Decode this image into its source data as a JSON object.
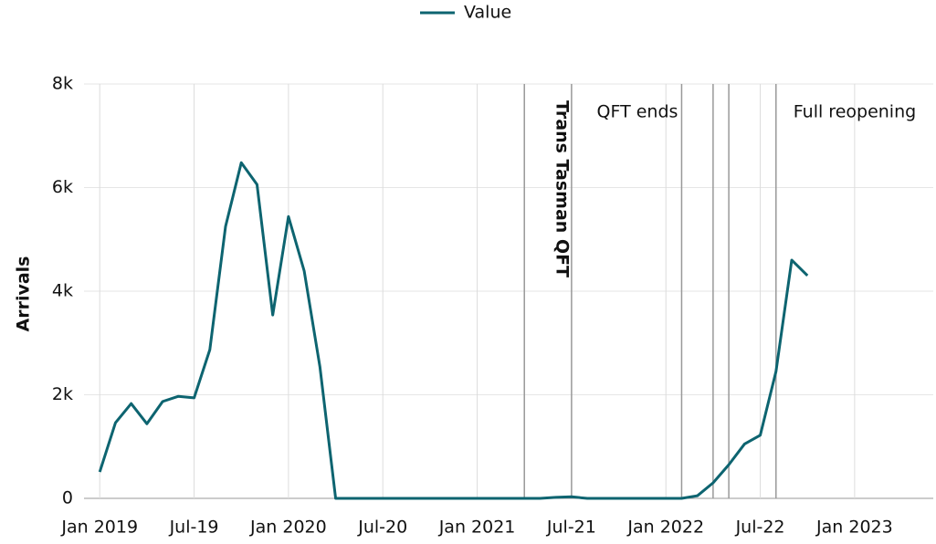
{
  "chart_data": {
    "type": "line",
    "y_label": "Arrivals",
    "x": [
      "2019-01",
      "2019-02",
      "2019-03",
      "2019-04",
      "2019-05",
      "2019-06",
      "2019-07",
      "2019-08",
      "2019-09",
      "2019-10",
      "2019-11",
      "2019-12",
      "2020-01",
      "2020-02",
      "2020-03",
      "2020-04",
      "2020-05",
      "2020-06",
      "2020-07",
      "2020-08",
      "2020-09",
      "2020-10",
      "2020-11",
      "2020-12",
      "2021-01",
      "2021-02",
      "2021-03",
      "2021-04",
      "2021-05",
      "2021-06",
      "2021-07",
      "2021-08",
      "2021-09",
      "2021-10",
      "2021-11",
      "2021-12",
      "2022-01",
      "2022-02",
      "2022-03",
      "2022-04",
      "2022-05",
      "2022-06",
      "2022-07",
      "2022-08",
      "2022-09",
      "2022-10"
    ],
    "series": [
      {
        "name": "Value",
        "color": "#0d6470",
        "values": [
          510,
          1460,
          1830,
          1440,
          1870,
          1970,
          1940,
          2870,
          5250,
          6480,
          6060,
          3540,
          5440,
          4390,
          2540,
          0,
          0,
          0,
          0,
          0,
          0,
          0,
          0,
          0,
          0,
          0,
          0,
          0,
          0,
          20,
          30,
          0,
          0,
          0,
          0,
          0,
          0,
          0,
          50,
          300,
          650,
          1050,
          1220,
          2450,
          4600,
          4300
        ]
      }
    ],
    "xlim": [
      "2018-12",
      "2023-06"
    ],
    "xticks": [
      {
        "value": "2019-01",
        "label": "Jan 2019"
      },
      {
        "value": "2019-07",
        "label": "Jul-19"
      },
      {
        "value": "2020-01",
        "label": "Jan 2020"
      },
      {
        "value": "2020-07",
        "label": "Jul-20"
      },
      {
        "value": "2021-01",
        "label": "Jan 2021"
      },
      {
        "value": "2021-07",
        "label": "Jul-21"
      },
      {
        "value": "2022-01",
        "label": "Jan 2022"
      },
      {
        "value": "2022-07",
        "label": "Jul-22"
      },
      {
        "value": "2023-01",
        "label": "Jan 2023"
      }
    ],
    "ylim": [
      0,
      8000
    ],
    "yticks": [
      0,
      {
        "value": 2000,
        "label": "2k"
      },
      {
        "value": 4000,
        "label": "4k"
      },
      {
        "value": 6000,
        "label": "6k"
      },
      {
        "value": 8000,
        "label": "8k"
      }
    ],
    "grid": true,
    "legend": "top",
    "reference_lines": [
      "2021-04",
      "2021-07",
      "2022-02",
      "2022-04",
      "2022-05",
      "2022-08"
    ],
    "annotations": [
      "Trans Tasman QFT",
      "QFT ends",
      "Full reopening"
    ]
  }
}
